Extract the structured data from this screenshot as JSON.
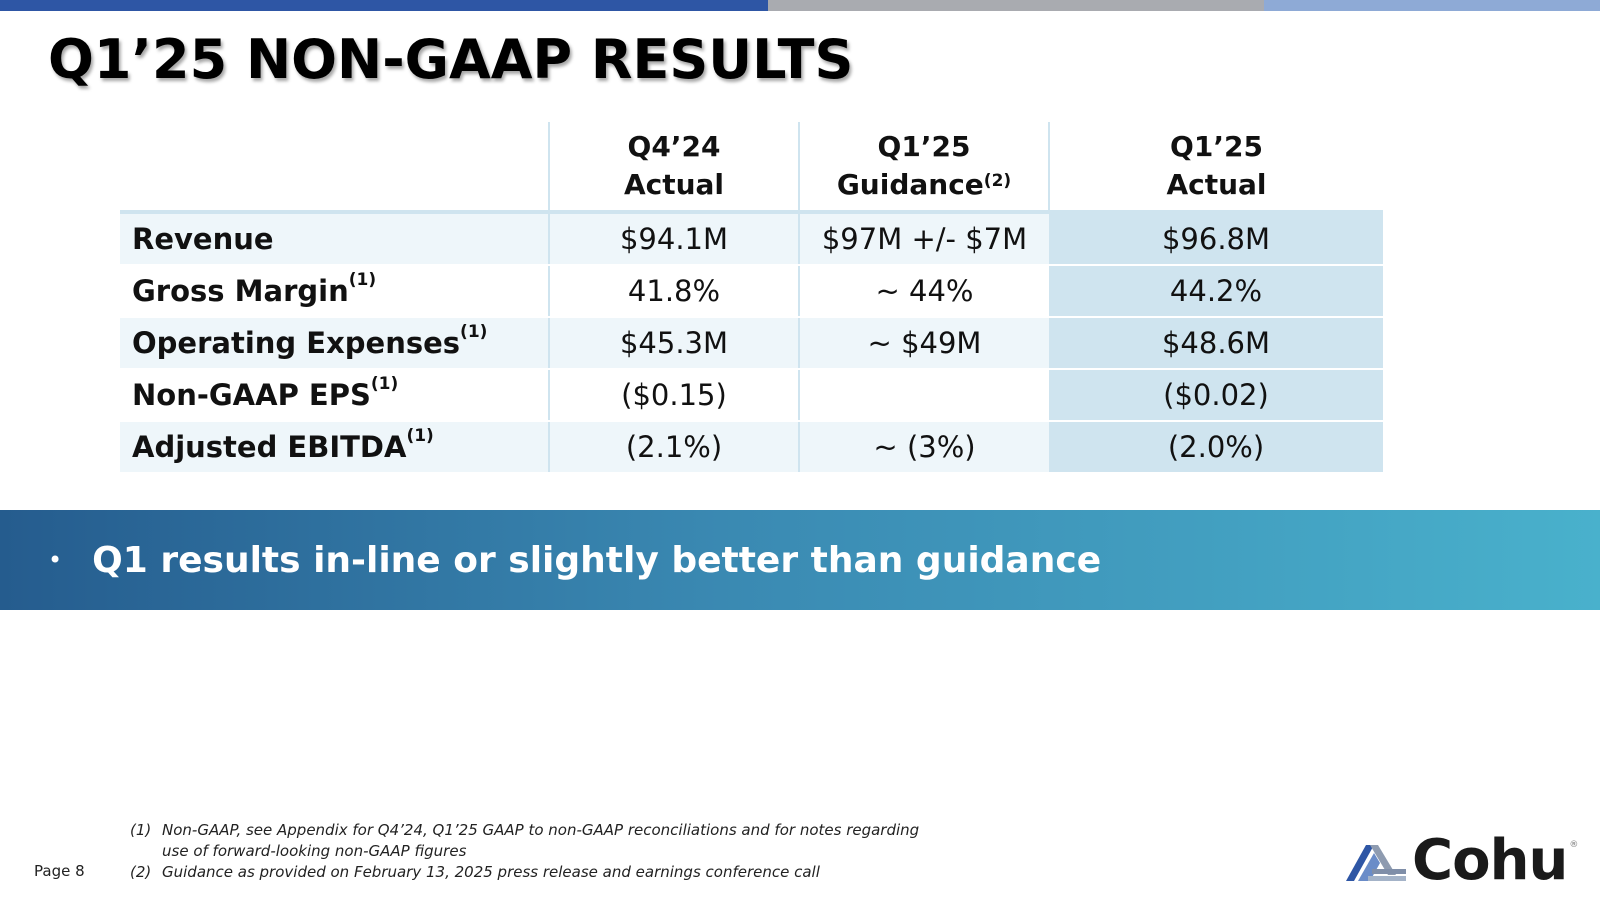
{
  "title": "Q1’25 NON-GAAP RESULTS",
  "table": {
    "headers": [
      {
        "line1": "Q4’24",
        "line2": "Actual",
        "sup": ""
      },
      {
        "line1": "Q1’25",
        "line2": "Guidance",
        "sup": "(2)"
      },
      {
        "line1": "Q1’25",
        "line2": "Actual",
        "sup": ""
      }
    ],
    "rows": [
      {
        "label": "Revenue",
        "sup": "",
        "q4_actual": "$94.1M",
        "q1_guidance": "$97M +/- $7M",
        "q1_actual": "$96.8M"
      },
      {
        "label": "Gross Margin",
        "sup": "(1)",
        "q4_actual": "41.8%",
        "q1_guidance": "~ 44%",
        "q1_actual": "44.2%"
      },
      {
        "label": "Operating Expenses",
        "sup": "(1)",
        "q4_actual": "$45.3M",
        "q1_guidance": "~ $49M",
        "q1_actual": "$48.6M"
      },
      {
        "label": "Non-GAAP EPS",
        "sup": "(1)",
        "q4_actual": "($0.15)",
        "q1_guidance": "",
        "q1_actual": "($0.02)"
      },
      {
        "label": "Adjusted EBITDA",
        "sup": "(1)",
        "q4_actual": "(2.1%)",
        "q1_guidance": "~ (3%)",
        "q1_actual": "(2.0%)"
      }
    ]
  },
  "banner": {
    "bullet": "•",
    "text": "Q1 results in-line or slightly better than guidance"
  },
  "footnotes": [
    {
      "num": "(1)",
      "text": "Non-GAAP, see Appendix for Q4’24, Q1’25 GAAP to non-GAAP reconciliations and for notes regarding use of forward-looking non-GAAP figures"
    },
    {
      "num": "(2)",
      "text": "Guidance as provided on February 13, 2025 press release and earnings conference call"
    }
  ],
  "page_number": "Page 8",
  "logo": {
    "text": "Cohu",
    "reg": "®",
    "icon": "cohu-logo-icon"
  },
  "colors": {
    "top_bar_blue": "#2e56a5",
    "top_bar_gray": "#a9abb0",
    "top_bar_light": "#8eaad6",
    "banner_start": "#255c8e",
    "banner_end": "#49b1cc",
    "cell_light": "#eef6fa",
    "cell_mid": "#cfe4ef"
  }
}
